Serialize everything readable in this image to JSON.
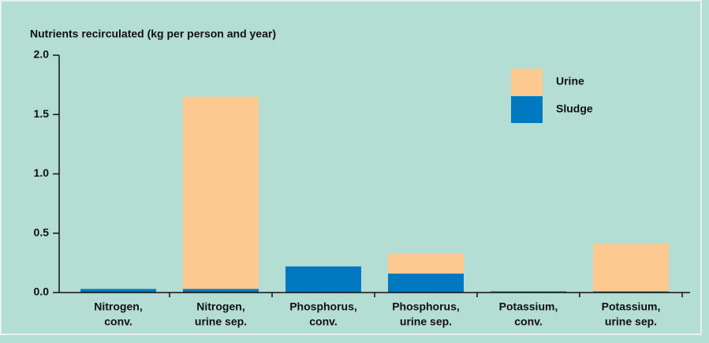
{
  "chart_data": {
    "type": "stacked_bar",
    "title": "Nutrients recirculated (kg per person and year)",
    "categories": [
      [
        "Nitrogen,",
        "conv."
      ],
      [
        "Nitrogen,",
        "urine sep."
      ],
      [
        "Phosphorus,",
        "conv."
      ],
      [
        "Phosphorus,",
        "urine sep."
      ],
      [
        "Potassium,",
        "conv."
      ],
      [
        "Potassium,",
        "urine sep."
      ]
    ],
    "series": [
      {
        "name": "Sludge",
        "color": "#0079c1",
        "values": [
          0.03,
          0.03,
          0.22,
          0.16,
          0.01,
          0.01
        ]
      },
      {
        "name": "Urine",
        "color": "#fcc990",
        "values": [
          0,
          1.62,
          0,
          0.17,
          0,
          0.4
        ]
      }
    ],
    "ylim": [
      0,
      2.0
    ],
    "yticks": [
      {
        "value": 0,
        "label": "0.0"
      },
      0.5,
      {
        "value": 1,
        "label": "1.0"
      },
      1.5,
      {
        "value": 2,
        "label": "2.0"
      }
    ],
    "legend": "top-right"
  }
}
